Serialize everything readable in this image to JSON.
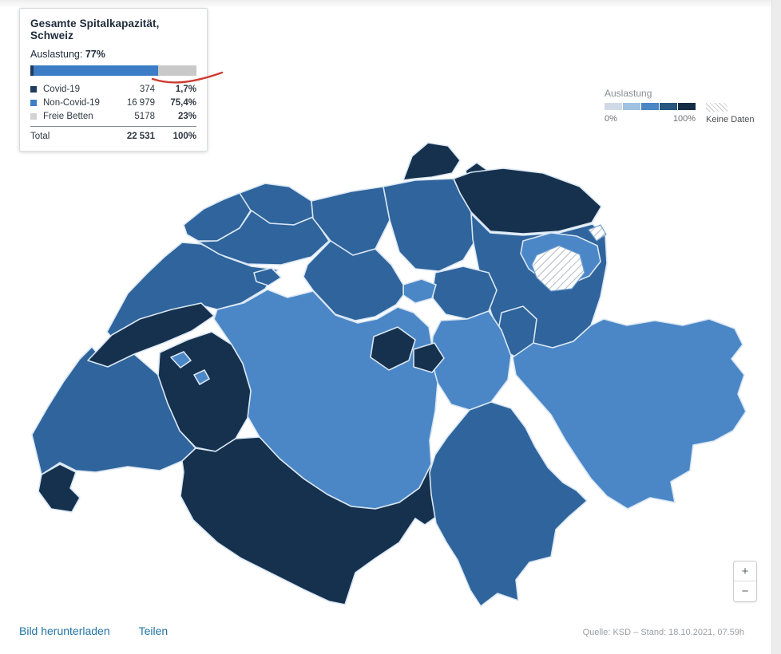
{
  "panel": {
    "title": "Gesamte Spitalkapazität, Schweiz",
    "occupancy_label": "Auslastung:",
    "occupancy_value": "77%",
    "bar": {
      "covid_pct": 1.7,
      "non_covid_pct": 75.4,
      "free_pct": 23,
      "covid_color": "#1f3b5e",
      "non_covid_color": "#3c7dc6",
      "free_color": "#c9c9c9"
    },
    "rows": [
      {
        "label": "Covid-19",
        "value": "374",
        "pct": "1,7%",
        "swatch": "#1f3b5e"
      },
      {
        "label": "Non-Covid-19",
        "value": "16 979",
        "pct": "75,4%",
        "swatch": "#3c7dc6"
      },
      {
        "label": "Freie Betten",
        "value": "5178",
        "pct": "23%",
        "swatch": "#d2d2d2"
      }
    ],
    "total": {
      "label": "Total",
      "value": "22 531",
      "pct": "100%"
    },
    "annotation_color": "#cf3a2e"
  },
  "legend": {
    "title": "Auslastung",
    "min_label": "0%",
    "max_label": "100%",
    "no_data_label": "Keine Daten",
    "colors": [
      "#cfdae6",
      "#9fc2e0",
      "#4a85c4",
      "#27567e",
      "#142c46"
    ]
  },
  "map": {
    "fill_colors": {
      "low": "#4b87c6",
      "mid": "#2f649c",
      "high": "#16314e"
    },
    "border_color": "#d9e6f3",
    "regions": [
      {
        "id": "BEJ",
        "level": "mid"
      },
      {
        "id": "BE",
        "level": "low"
      },
      {
        "id": "VD",
        "level": "mid"
      },
      {
        "id": "NE",
        "level": "high"
      },
      {
        "id": "NE2",
        "level": "high"
      },
      {
        "id": "JU",
        "level": "mid"
      },
      {
        "id": "BSBL",
        "level": "mid"
      },
      {
        "id": "SO",
        "level": "mid"
      },
      {
        "id": "SOX",
        "level": "mid"
      },
      {
        "id": "AG",
        "level": "mid"
      },
      {
        "id": "ZH",
        "level": "mid"
      },
      {
        "id": "SH",
        "level": "high"
      },
      {
        "id": "SH2",
        "level": "high"
      },
      {
        "id": "TG",
        "level": "high"
      },
      {
        "id": "SG",
        "level": "mid"
      },
      {
        "id": "AR",
        "level": "low"
      },
      {
        "id": "AI",
        "level": "no-data"
      },
      {
        "id": "AI2",
        "level": "no-data"
      },
      {
        "id": "GL",
        "level": "mid"
      },
      {
        "id": "SZ",
        "level": "mid"
      },
      {
        "id": "ZG",
        "level": "low"
      },
      {
        "id": "LU",
        "level": "mid"
      },
      {
        "id": "UR",
        "level": "low"
      },
      {
        "id": "OW",
        "level": "high"
      },
      {
        "id": "NW",
        "level": "high"
      },
      {
        "id": "FR",
        "level": "high"
      },
      {
        "id": "FRE1",
        "level": "low"
      },
      {
        "id": "FRE2",
        "level": "low"
      },
      {
        "id": "VS",
        "level": "high"
      },
      {
        "id": "TI",
        "level": "mid"
      },
      {
        "id": "GR",
        "level": "low"
      },
      {
        "id": "GE",
        "level": "high"
      }
    ]
  },
  "zoom_controls": {
    "zoom_in_label": "+",
    "zoom_out_label": "−"
  },
  "footer": {
    "download_label": "Bild herunterladen",
    "share_label": "Teilen",
    "source": "Quelle: KSD – Stand: 18.10.2021, 07.59h"
  }
}
